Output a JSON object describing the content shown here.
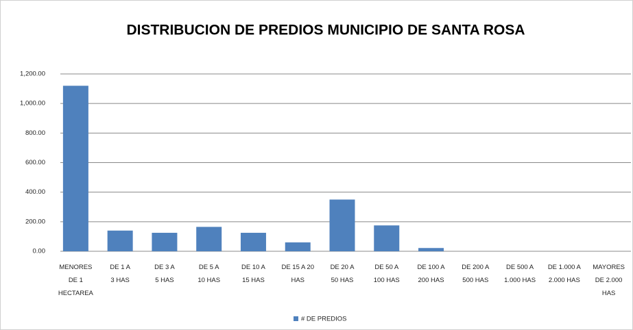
{
  "chart_data": {
    "type": "bar",
    "title": "DISTRIBUCION DE PREDIOS MUNICIPIO DE SANTA ROSA",
    "categories": [
      "MENORES\nDE 1\nHECTAREA",
      "DE   1 A\n3 HAS",
      "DE   3 A\n5 HAS",
      "DE   5 A\n10 HAS",
      "DE  10 A\n15 HAS",
      "DE 15 A   20\nHAS",
      "DE  20 A\n50 HAS",
      "DE  50 A\n100 HAS",
      "DE  100 A\n200 HAS",
      "DE  200 A\n500 HAS",
      "DE  500 A\n1.000 HAS",
      "DE 1.000 A\n2.000 HAS",
      "MAYORES\nDE 2.000\nHAS"
    ],
    "series": [
      {
        "name": "# DE PREDIOS",
        "color": "#4f81bd",
        "values": [
          1120,
          140,
          125,
          165,
          125,
          60,
          350,
          175,
          22,
          0,
          0,
          0,
          0
        ]
      }
    ],
    "ylim": [
      0,
      1200
    ],
    "yticks": [
      {
        "value": 0,
        "label": "0.00"
      },
      {
        "value": 200,
        "label": "200.00"
      },
      {
        "value": 400,
        "label": "400.00"
      },
      {
        "value": 600,
        "label": "600.00"
      },
      {
        "value": 800,
        "label": "800.00"
      },
      {
        "value": 1000,
        "label": "1,000.00"
      },
      {
        "value": 1200,
        "label": "1,200.00"
      }
    ],
    "grid": true,
    "legend": "bottom"
  }
}
